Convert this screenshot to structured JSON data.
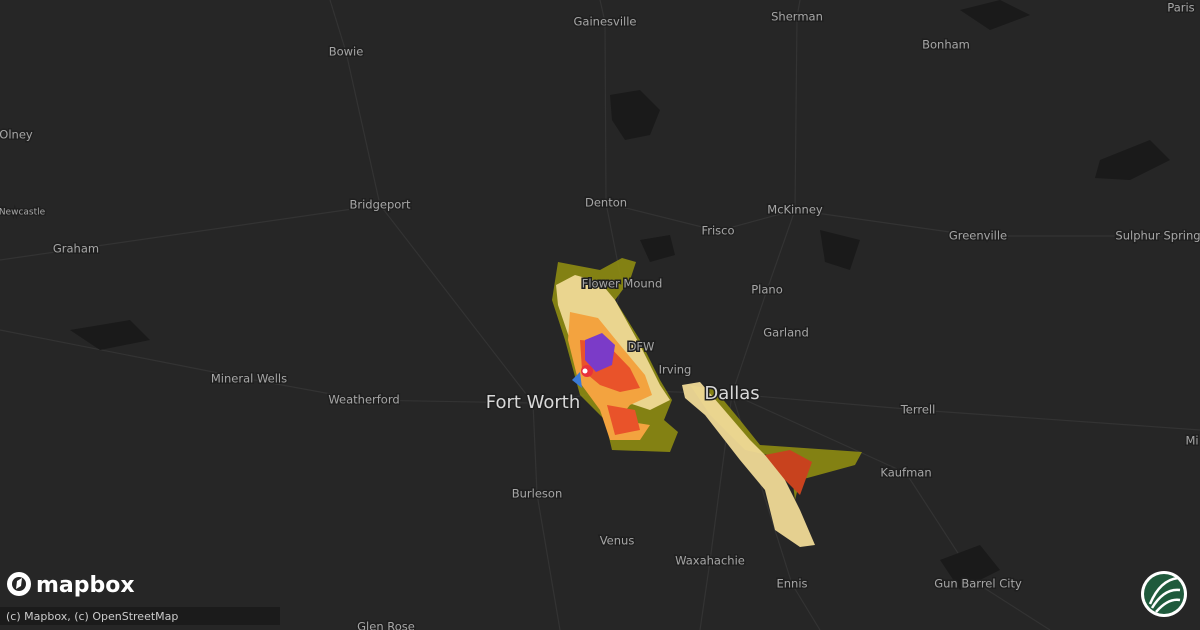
{
  "map": {
    "labels": [
      "Gainesville",
      "Sherman",
      "Paris",
      "Bowie",
      "Bonham",
      "Olney",
      "Denton",
      "McKinney",
      "Frisco",
      "Bridgeport",
      "Newcastle",
      "Graham",
      "Greenville",
      "Sulphur Spring",
      "Flower Mound",
      "Plano",
      "Garland",
      "DFW",
      "Irving",
      "Dallas",
      "Fort Worth",
      "Mineral Wells",
      "Weatherford",
      "Terrell",
      "Mi",
      "Kaufman",
      "Burleson",
      "Venus",
      "Waxahachie",
      "Ennis",
      "Gun Barrel City",
      "Glen Rose"
    ],
    "logo": "mapbox",
    "attribution": "(c) Mapbox, (c) OpenStreetMap"
  }
}
